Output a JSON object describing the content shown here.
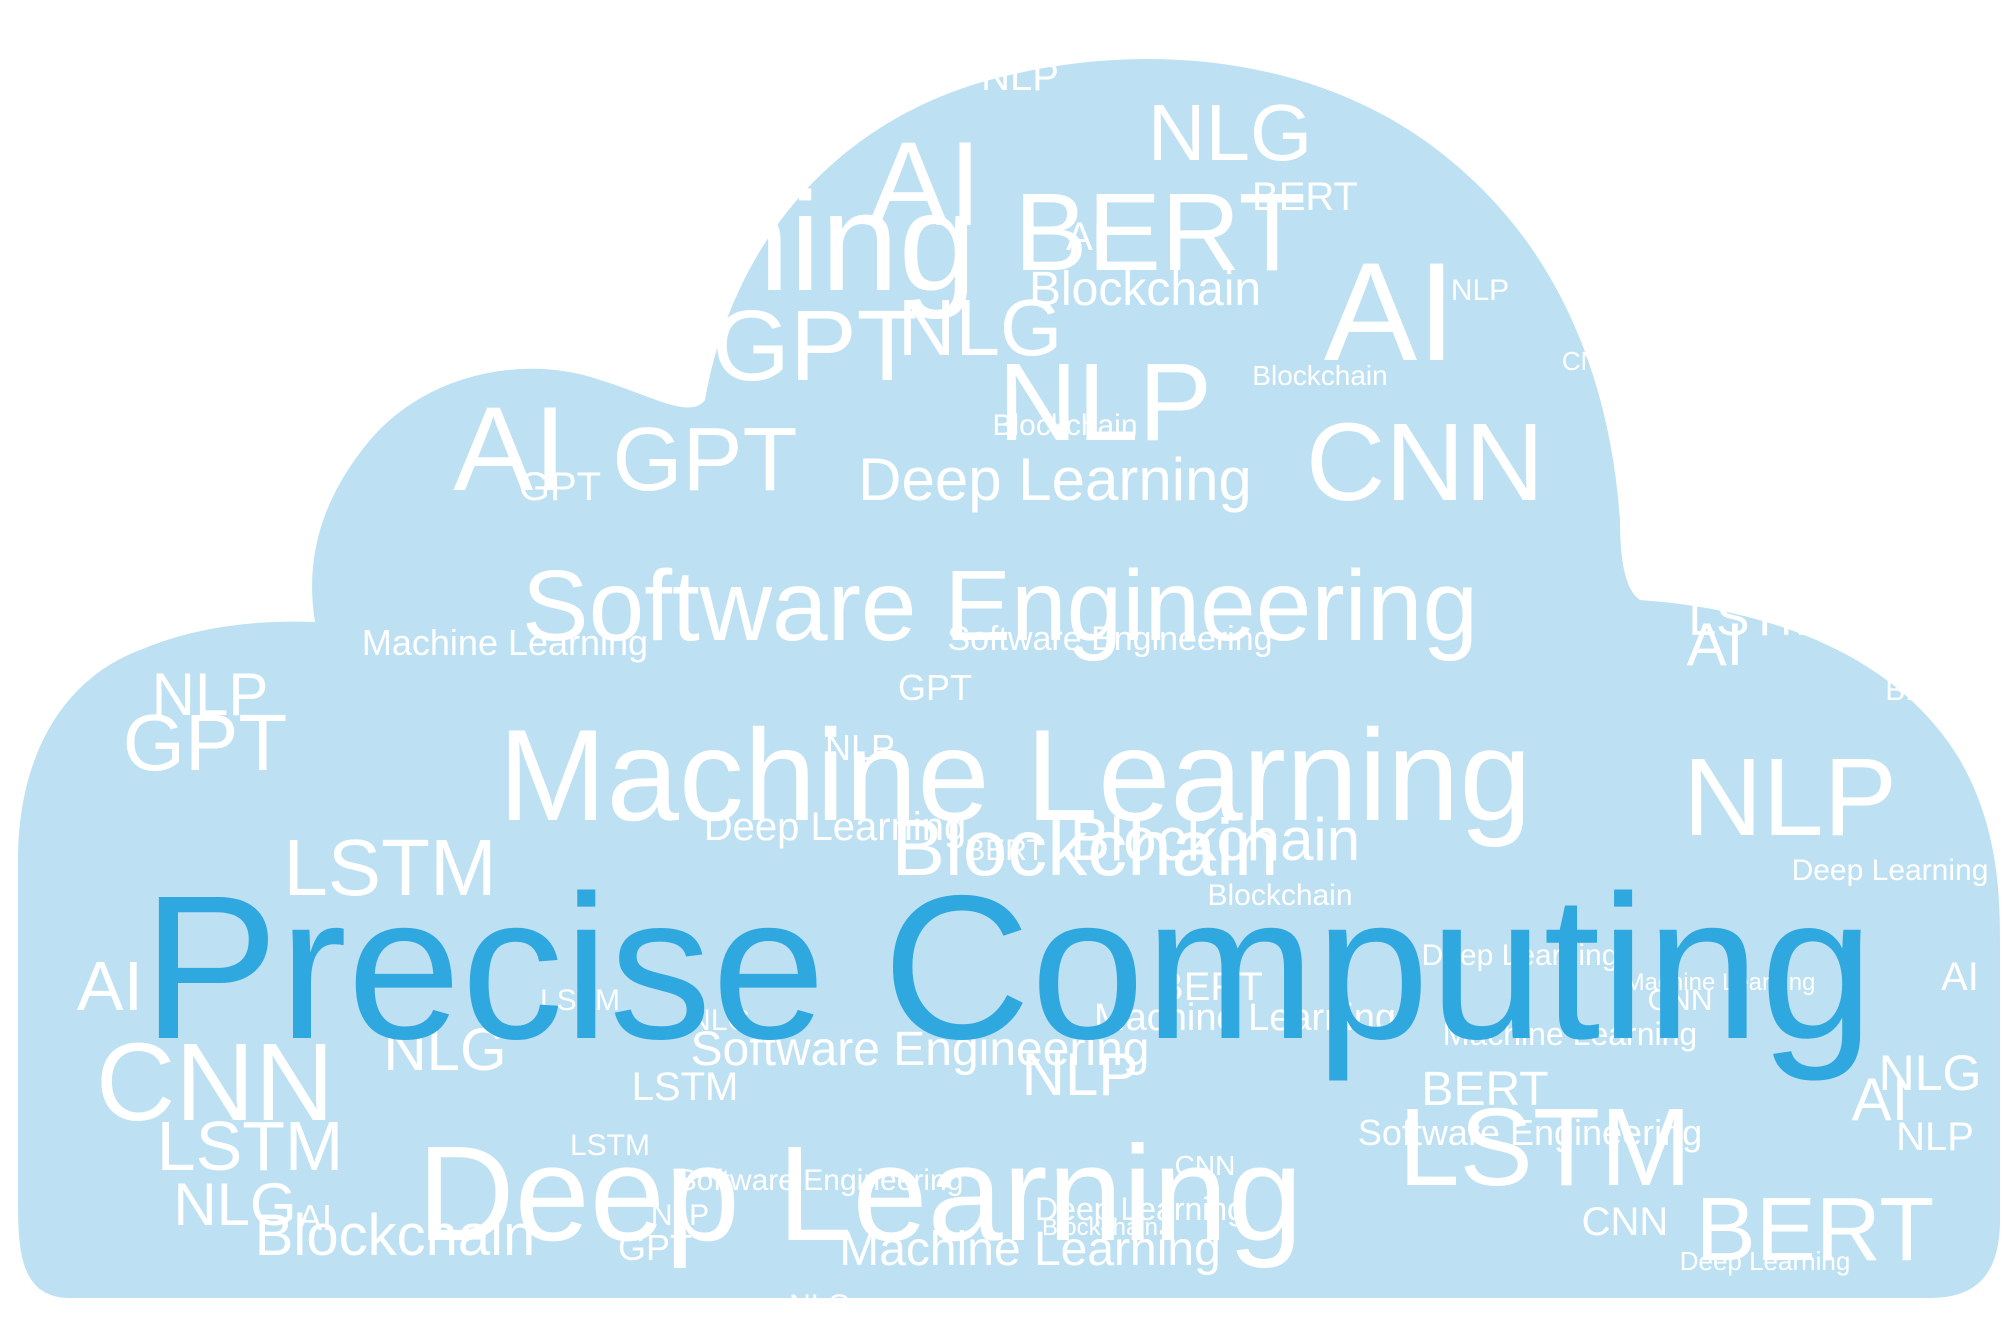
{
  "colors": {
    "cloud_fill": "#bde1f2",
    "word_color": "#ffffff",
    "headline_color": "#2fa7df",
    "background": "#ffffff"
  },
  "headline": "Precise Computing",
  "words": [
    "Machine Learning",
    "Deep Learning",
    "Software Engineering",
    "Blockchain",
    "AI",
    "NLP",
    "NLG",
    "CNN",
    "GPT",
    "BERT",
    "LSTM"
  ]
}
